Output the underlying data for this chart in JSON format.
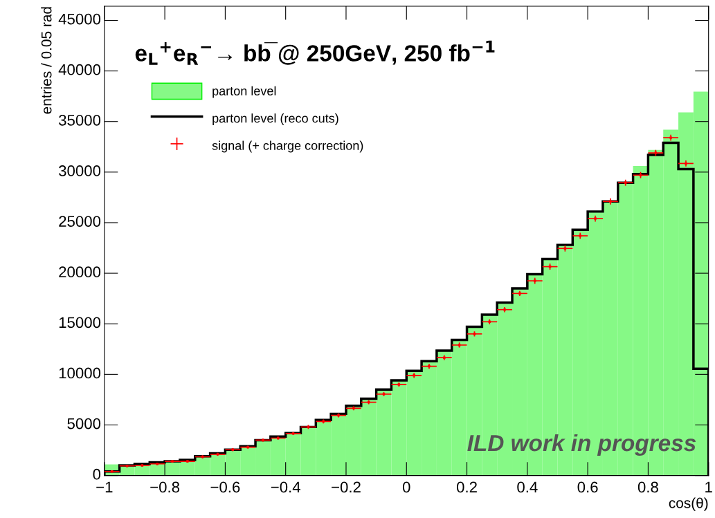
{
  "chart_data": {
    "type": "histogram",
    "title": "e$_{L}$$^{+}$e$_{R}$$^{−}$→ bb̅ @ 250GeV, 250 fb$^{−1}$",
    "xlabel": "cos(θ)",
    "ylabel": "entries / 0.05 rad",
    "bins": [
      -1,
      -0.95,
      -0.9,
      -0.85,
      -0.8,
      -0.75,
      -0.7,
      -0.65,
      -0.6,
      -0.55,
      -0.5,
      -0.45,
      -0.4,
      -0.35,
      -0.3,
      -0.25,
      -0.2,
      -0.15,
      -0.1,
      -0.05,
      0,
      0.05,
      0.1,
      0.15,
      0.2,
      0.25,
      0.3,
      0.35,
      0.4,
      0.45,
      0.5,
      0.55,
      0.6,
      0.65,
      0.7,
      0.75,
      0.8,
      0.85,
      0.9,
      0.95,
      1
    ],
    "series": [
      {
        "name": "parton level",
        "type": "histogram",
        "color": "#86f986",
        "values": [
          1100,
          1000,
          1150,
          1300,
          1400,
          1550,
          1900,
          2200,
          2550,
          2900,
          3500,
          3850,
          4200,
          4800,
          5500,
          6100,
          6900,
          7600,
          8500,
          9400,
          10350,
          11300,
          12350,
          13400,
          14700,
          15900,
          17100,
          18500,
          19900,
          21400,
          22800,
          24300,
          26100,
          27100,
          28950,
          30600,
          32200,
          34200,
          35900,
          37950
        ]
      },
      {
        "name": "parton level (reco cuts)",
        "type": "histogram",
        "line_style": "solid",
        "color": "#000000",
        "values": [
          400,
          1000,
          1150,
          1300,
          1400,
          1550,
          1900,
          2200,
          2550,
          2900,
          3500,
          3850,
          4200,
          4800,
          5500,
          6100,
          6900,
          7600,
          8500,
          9400,
          10350,
          11300,
          12350,
          13400,
          14700,
          15900,
          17100,
          18500,
          19900,
          21400,
          22800,
          24300,
          26100,
          27100,
          28950,
          29800,
          31700,
          32900,
          30300,
          10550
        ]
      },
      {
        "name": "signal (+ charge correction)",
        "type": "scatter",
        "color": "#ff0000",
        "x": [
          -0.975,
          -0.925,
          -0.875,
          -0.825,
          -0.775,
          -0.725,
          -0.675,
          -0.625,
          -0.575,
          -0.525,
          -0.475,
          -0.425,
          -0.375,
          -0.325,
          -0.275,
          -0.225,
          -0.175,
          -0.125,
          -0.075,
          -0.025,
          0.025,
          0.075,
          0.125,
          0.175,
          0.225,
          0.275,
          0.325,
          0.375,
          0.425,
          0.475,
          0.525,
          0.575,
          0.625,
          0.675,
          0.725,
          0.775,
          0.825,
          0.875,
          0.925
        ],
        "values": [
          400,
          950,
          1000,
          1150,
          1400,
          1400,
          1850,
          2100,
          2550,
          2800,
          3500,
          3700,
          4150,
          4800,
          5350,
          5950,
          6650,
          7250,
          8050,
          9000,
          9900,
          10800,
          11650,
          12900,
          14000,
          15200,
          16400,
          18000,
          19250,
          20650,
          22450,
          23700,
          25400,
          27100,
          28950,
          29700,
          31900,
          33400,
          30850
        ],
        "errors": [
          100,
          100,
          100,
          100,
          100,
          100,
          150,
          150,
          150,
          150,
          150,
          150,
          150,
          200,
          200,
          200,
          200,
          200,
          200,
          200,
          250,
          250,
          250,
          250,
          250,
          250,
          250,
          250,
          300,
          300,
          300,
          300,
          300,
          300,
          300,
          300,
          300,
          300,
          300
        ],
        "xerrors": [
          0.025,
          0.025,
          0.025,
          0.025,
          0.025,
          0.025,
          0.025,
          0.025,
          0.025,
          0.025,
          0.025,
          0.025,
          0.025,
          0.025,
          0.025,
          0.025,
          0.025,
          0.025,
          0.025,
          0.025,
          0.025,
          0.025,
          0.025,
          0.025,
          0.025,
          0.025,
          0.025,
          0.025,
          0.025,
          0.025,
          0.025,
          0.025,
          0.025,
          0.025,
          0.025,
          0.025,
          0.025,
          0.025,
          0.025
        ]
      }
    ],
    "xlim": [
      -1,
      1
    ],
    "xticks": [
      {
        "value": -1,
        "label": "−1"
      },
      {
        "value": -0.8,
        "label": "−0.8"
      },
      {
        "value": -0.6,
        "label": "−0.6"
      },
      {
        "value": -0.4,
        "label": "−0.4"
      },
      {
        "value": -0.2,
        "label": "−0.2"
      },
      0,
      {
        "value": 0.2,
        "label": "0.2"
      },
      {
        "value": 0.4,
        "label": "0.4"
      },
      {
        "value": 0.6,
        "label": "0.6"
      },
      {
        "value": 0.8,
        "label": "0.8"
      },
      1
    ],
    "ylim": [
      0,
      46400
    ],
    "yticks": [
      0,
      5000,
      10000,
      15000,
      20000,
      25000,
      30000,
      35000,
      40000,
      45000
    ],
    "grid": false,
    "legend": "top left",
    "annotations": [
      "ILD work in progress"
    ]
  }
}
